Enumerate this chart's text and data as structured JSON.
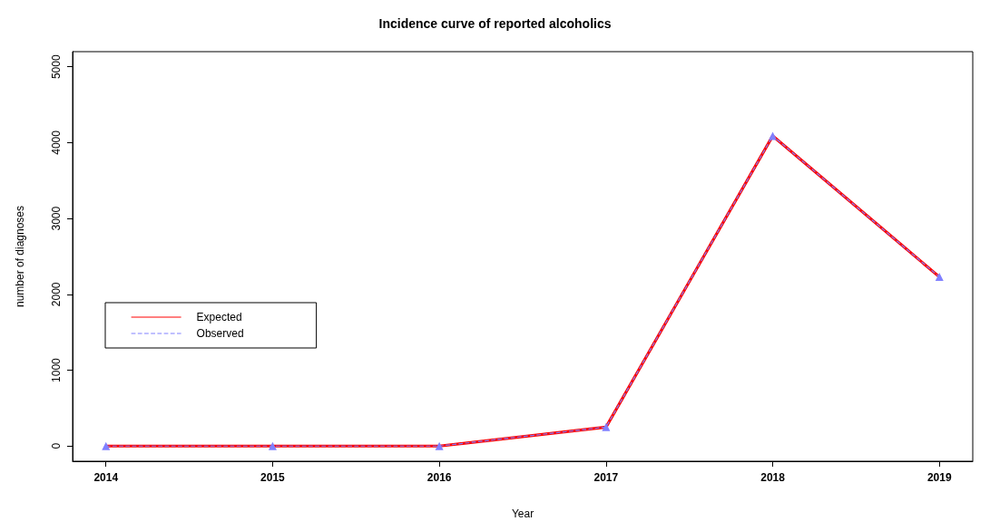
{
  "chart_data": {
    "type": "line",
    "title": "Incidence curve of reported alcoholics",
    "xlabel": "Year",
    "ylabel": "number of diagnoses",
    "x": [
      2014,
      2015,
      2016,
      2017,
      2018,
      2019
    ],
    "series": [
      {
        "name": "Expected",
        "color": "#ff0000",
        "values": [
          0,
          0,
          0,
          250,
          4090,
          2230
        ],
        "line_style": "solid"
      },
      {
        "name": "Observed",
        "color": "#8080ff",
        "values": [
          0,
          0,
          0,
          250,
          4090,
          2230
        ],
        "line_style": "dashed",
        "marker": "triangle"
      }
    ],
    "xlim": [
      2013.8,
      2019.2
    ],
    "xticks": [
      2014,
      2015,
      2016,
      2017,
      2018,
      2019
    ],
    "ylim": [
      -200,
      5200
    ],
    "yticks": [
      0,
      1000,
      2000,
      3000,
      4000,
      5000
    ],
    "grid": false,
    "legend": "left"
  }
}
